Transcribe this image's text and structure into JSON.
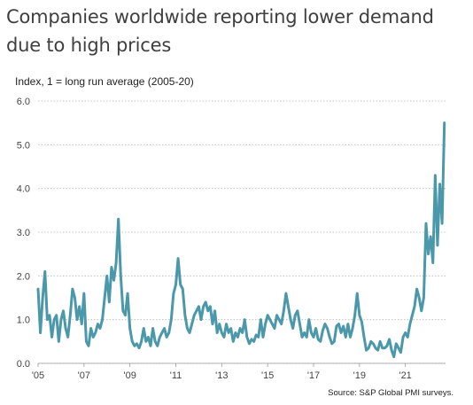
{
  "chart_data": {
    "type": "line",
    "title": "Companies worldwide reporting lower demand due to high prices",
    "ylabel": "Index, 1 = long run average (2005-20)",
    "source": "Source: S&P Global PMI surveys.",
    "ylim": [
      0,
      6
    ],
    "yticks": [
      "0.0",
      "1.0",
      "2.0",
      "3.0",
      "4.0",
      "5.0",
      "6.0"
    ],
    "xlim": [
      2005,
      2022.75
    ],
    "xticks": [
      "'05",
      "'07",
      "'09",
      "'11",
      "'13",
      "'15",
      "'17",
      "'19",
      "'21"
    ],
    "grid": "horizontal dotted",
    "line_color": "#4a98aa",
    "series": [
      {
        "name": "",
        "x": [
          2005.0,
          2005.1,
          2005.2,
          2005.3,
          2005.4,
          2005.5,
          2005.6,
          2005.7,
          2005.8,
          2005.9,
          2006.0,
          2006.1,
          2006.2,
          2006.3,
          2006.4,
          2006.5,
          2006.6,
          2006.7,
          2006.8,
          2006.9,
          2007.0,
          2007.1,
          2007.2,
          2007.3,
          2007.4,
          2007.5,
          2007.6,
          2007.7,
          2007.8,
          2007.9,
          2008.0,
          2008.1,
          2008.2,
          2008.3,
          2008.4,
          2008.5,
          2008.6,
          2008.7,
          2008.8,
          2008.9,
          2009.0,
          2009.1,
          2009.2,
          2009.3,
          2009.4,
          2009.5,
          2009.6,
          2009.7,
          2009.8,
          2009.9,
          2010.0,
          2010.1,
          2010.2,
          2010.3,
          2010.4,
          2010.5,
          2010.6,
          2010.7,
          2010.8,
          2010.9,
          2011.0,
          2011.1,
          2011.2,
          2011.3,
          2011.4,
          2011.5,
          2011.6,
          2011.7,
          2011.8,
          2011.9,
          2012.0,
          2012.1,
          2012.2,
          2012.3,
          2012.4,
          2012.5,
          2012.6,
          2012.7,
          2012.8,
          2012.9,
          2013.0,
          2013.1,
          2013.2,
          2013.3,
          2013.4,
          2013.5,
          2013.6,
          2013.7,
          2013.8,
          2013.9,
          2014.0,
          2014.1,
          2014.2,
          2014.3,
          2014.4,
          2014.5,
          2014.6,
          2014.7,
          2014.8,
          2014.9,
          2015.0,
          2015.1,
          2015.2,
          2015.3,
          2015.4,
          2015.5,
          2015.6,
          2015.7,
          2015.8,
          2015.9,
          2016.0,
          2016.1,
          2016.2,
          2016.3,
          2016.4,
          2016.5,
          2016.6,
          2016.7,
          2016.8,
          2016.9,
          2017.0,
          2017.1,
          2017.2,
          2017.3,
          2017.4,
          2017.5,
          2017.6,
          2017.7,
          2017.8,
          2017.9,
          2018.0,
          2018.1,
          2018.2,
          2018.3,
          2018.4,
          2018.5,
          2018.6,
          2018.7,
          2018.8,
          2018.9,
          2019.0,
          2019.1,
          2019.2,
          2019.3,
          2019.4,
          2019.5,
          2019.6,
          2019.7,
          2019.8,
          2019.9,
          2020.0,
          2020.1,
          2020.2,
          2020.3,
          2020.4,
          2020.5,
          2020.6,
          2020.7,
          2020.8,
          2020.9,
          2021.0,
          2021.1,
          2021.2,
          2021.3,
          2021.4,
          2021.5,
          2021.6,
          2021.7,
          2021.8,
          2021.9,
          2022.0,
          2022.1,
          2022.2,
          2022.3,
          2022.4,
          2022.5,
          2022.6,
          2022.7
        ],
        "y": [
          1.7,
          0.7,
          1.5,
          2.1,
          1.0,
          1.1,
          0.6,
          1.0,
          1.1,
          0.5,
          1.0,
          1.2,
          0.8,
          0.6,
          1.1,
          1.7,
          1.5,
          1.0,
          1.3,
          0.9,
          1.6,
          0.5,
          0.4,
          0.8,
          0.6,
          0.7,
          0.9,
          0.8,
          1.0,
          1.5,
          2.0,
          1.4,
          2.2,
          1.9,
          2.3,
          3.3,
          2.0,
          1.2,
          1.1,
          1.6,
          0.8,
          0.5,
          0.4,
          0.45,
          0.35,
          0.5,
          0.8,
          0.5,
          0.6,
          0.4,
          0.8,
          0.5,
          0.4,
          0.6,
          0.7,
          0.8,
          0.6,
          0.7,
          1.0,
          1.6,
          1.8,
          2.4,
          1.8,
          1.7,
          1.1,
          0.8,
          0.7,
          0.9,
          1.1,
          1.2,
          1.3,
          1.0,
          1.3,
          1.4,
          1.2,
          1.3,
          0.9,
          1.2,
          0.7,
          0.9,
          0.7,
          0.6,
          0.9,
          0.7,
          0.8,
          0.5,
          0.7,
          0.6,
          0.8,
          0.7,
          1.0,
          0.6,
          0.45,
          0.55,
          0.5,
          0.65,
          0.6,
          1.0,
          0.6,
          0.9,
          1.1,
          1.0,
          0.9,
          0.8,
          1.1,
          1.0,
          0.9,
          1.2,
          1.6,
          1.3,
          1.0,
          0.8,
          1.1,
          1.2,
          0.9,
          0.6,
          0.7,
          0.6,
          1.0,
          0.7,
          0.6,
          0.8,
          0.55,
          0.5,
          0.75,
          0.9,
          0.8,
          0.6,
          0.45,
          0.5,
          0.85,
          0.9,
          0.7,
          0.85,
          0.6,
          0.9,
          0.6,
          0.8,
          1.1,
          1.6,
          1.1,
          0.95,
          0.6,
          0.3,
          0.35,
          0.5,
          0.45,
          0.35,
          0.3,
          0.5,
          0.35,
          0.35,
          0.4,
          0.55,
          0.3,
          0.15,
          0.45,
          0.35,
          0.25,
          0.6,
          0.7,
          0.6,
          0.9,
          1.1,
          1.3,
          1.7,
          1.5,
          1.2,
          1.5,
          3.2,
          2.5,
          2.9,
          2.3,
          4.3,
          2.7,
          4.1,
          3.2,
          5.5
        ]
      }
    ]
  }
}
